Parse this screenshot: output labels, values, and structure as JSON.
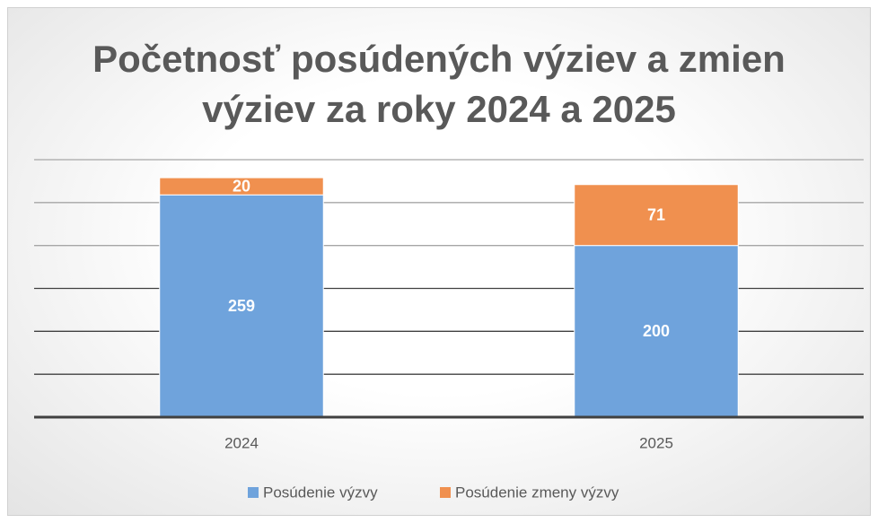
{
  "chart_data": {
    "type": "stacked_bar",
    "title": "Početnosť posúdených výziev a zmien výziev za roky 2024 a 2025",
    "categories": [
      "2024",
      "2025"
    ],
    "series": [
      {
        "name": "Posúdenie výzvy",
        "color": "#6fa3dc",
        "values": [
          259,
          200
        ]
      },
      {
        "name": "Posúdenie zmeny výzvy",
        "color": "#f0904f",
        "values": [
          20,
          71
        ]
      }
    ],
    "ylim": [
      0,
      300
    ],
    "yticks": [
      0,
      50,
      100,
      150,
      200,
      250,
      300
    ],
    "grid": true,
    "legend": "bottom"
  }
}
